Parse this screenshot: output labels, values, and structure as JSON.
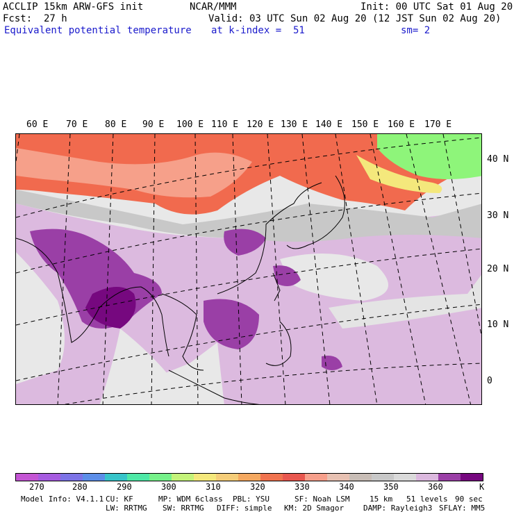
{
  "header": {
    "model": "ACCLIP 15km ARW-GFS init",
    "center": "NCAR/MMM",
    "init": "Init: 00 UTC Sat 01 Aug 20",
    "fcst_label": "Fcst:",
    "fcst_value": "27 h",
    "valid": "Valid: 03 UTC Sun 02 Aug 20 (12 JST Sun 02 Aug 20)",
    "field": "Equivalent potential temperature",
    "level": "at k-index =  51",
    "smooth": "sm= 2"
  },
  "map": {
    "lon_labels": [
      "60 E",
      "70 E",
      "80 E",
      "90 E",
      "100 E",
      "110 E",
      "120 E",
      "130 E",
      "140 E",
      "150 E",
      "160 E",
      "170 E"
    ],
    "lat_labels": [
      "40 N",
      "30 N",
      "20 N",
      "10 N",
      "0"
    ],
    "colors": {
      "ocean": "#e8e8e8",
      "light_purple": "#dcbadf",
      "mid_purple": "#9a3fa6",
      "dark_purple": "#76087f",
      "gray": "#c8c8c8",
      "orange_red": "#f16a4e",
      "salmon": "#f6a08a",
      "green": "#8ef57a"
    }
  },
  "colorbar": {
    "colors": [
      "#c455d4",
      "#a65be0",
      "#7c73e6",
      "#5c8ee8",
      "#37c4c9",
      "#4ee8a6",
      "#76f18a",
      "#c4f37a",
      "#f4e87c",
      "#f5cd79",
      "#f4a860",
      "#f0734f",
      "#e8574f",
      "#f69f8b",
      "#e7c1b2",
      "#c8bdb6",
      "#c8c8c8",
      "#dadada",
      "#dbb8de",
      "#9a3fa6",
      "#76087f"
    ],
    "ticks": [
      "270",
      "280",
      "290",
      "300",
      "310",
      "320",
      "330",
      "340",
      "350",
      "360"
    ],
    "unit": "K"
  },
  "footer": {
    "line1": [
      "Model Info: V4.1.1",
      "CU: KF",
      "MP: WDM 6class",
      "PBL: YSU",
      "SF: Noah LSM",
      "15 km",
      "51 levels",
      "90 sec"
    ],
    "line2": [
      "LW: RRTMG",
      "SW: RRTMG",
      "DIFF: simple",
      "KM: 2D Smagor",
      "DAMP: Rayleigh3",
      "SFLAY: MM5"
    ]
  }
}
